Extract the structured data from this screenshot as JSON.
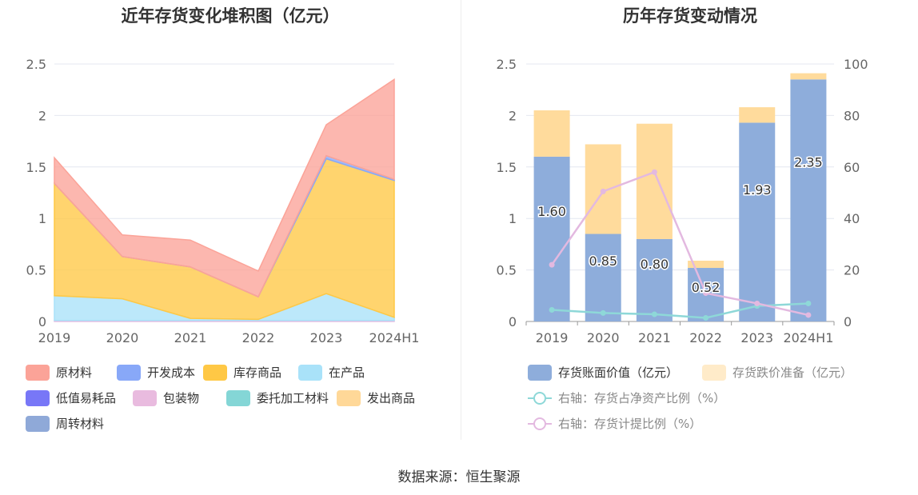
{
  "charts": [
    {
      "title": "近年存货变化堆积图（亿元）",
      "chart_data": {
        "type": "area",
        "stacked": true,
        "categories": [
          "2019",
          "2020",
          "2021",
          "2022",
          "2023",
          "2024H1"
        ],
        "ylim": [
          0,
          2.5
        ],
        "yticks": [
          "0",
          "0.5",
          "1",
          "1.5",
          "2",
          "2.5"
        ],
        "grid": true,
        "legend_position": "bottom",
        "series": [
          {
            "name": "原材料",
            "color": "#fba398",
            "values": [
              0.25,
              0.21,
              0.26,
              0.25,
              0.3,
              0.97
            ]
          },
          {
            "name": "开发成本",
            "color": "#88a8f8",
            "values": [
              0,
              0,
              0,
              0,
              0.03,
              0.01
            ]
          },
          {
            "name": "库存商品",
            "color": "#ffc845",
            "values": [
              1.09,
              0.41,
              0.5,
              0.22,
              1.31,
              1.33
            ]
          },
          {
            "name": "在产品",
            "color": "#a9e2f9",
            "values": [
              0.24,
              0.21,
              0.02,
              0.01,
              0.26,
              0.03
            ]
          },
          {
            "name": "低值易耗品",
            "color": "#7877f7",
            "values": [
              0,
              0,
              0,
              0,
              0,
              0
            ]
          },
          {
            "name": "包装物",
            "color": "#e9bbdf",
            "values": [
              0.01,
              0.01,
              0.01,
              0.01,
              0.01,
              0.01
            ]
          },
          {
            "name": "委托加工材料",
            "color": "#84d6d6",
            "values": [
              0,
              0,
              0,
              0,
              0,
              0
            ]
          },
          {
            "name": "发出商品",
            "color": "#ffd898",
            "values": [
              0,
              0,
              0,
              0,
              0,
              0
            ]
          },
          {
            "name": "周转材料",
            "color": "#8fa9d8",
            "values": [
              0,
              0,
              0,
              0,
              0,
              0
            ]
          }
        ]
      }
    },
    {
      "title": "历年存货变动情况",
      "chart_data": {
        "type": "bar",
        "stacked": true,
        "categories": [
          "2019",
          "2020",
          "2021",
          "2022",
          "2023",
          "2024H1"
        ],
        "ylim": [
          0,
          2.5
        ],
        "yticks": [
          "0",
          "0.5",
          "1",
          "1.5",
          "2",
          "2.5"
        ],
        "y2lim": [
          0,
          100
        ],
        "y2ticks": [
          "0",
          "20",
          "40",
          "60",
          "80",
          "100"
        ],
        "grid": true,
        "legend_position": "bottom",
        "series": [
          {
            "name": "存货账面价值（亿元）",
            "color": "#8eaddb",
            "values": [
              1.6,
              0.85,
              0.8,
              0.52,
              1.93,
              2.35
            ],
            "labels": [
              "1.60",
              "0.85",
              "0.80",
              "0.52",
              "1.93",
              "2.35"
            ]
          },
          {
            "name": "存货跌价准备（亿元）",
            "color": "#ffdb9c",
            "values": [
              0.45,
              0.87,
              1.12,
              0.07,
              0.15,
              0.06
            ]
          }
        ],
        "line_series": [
          {
            "name": "右轴：存货占净资产比例（%）",
            "color": "#8ed8d8",
            "axis": "right",
            "values": [
              4.5,
              3.3,
              2.8,
              1.4,
              6.0,
              7.0
            ]
          },
          {
            "name": "右轴：存货计提比例（%）",
            "color": "#e3b9e0",
            "axis": "right",
            "values": [
              22,
              50.5,
              58,
              11,
              7,
              2.5
            ]
          }
        ]
      }
    }
  ],
  "source": "数据来源：恒生聚源"
}
